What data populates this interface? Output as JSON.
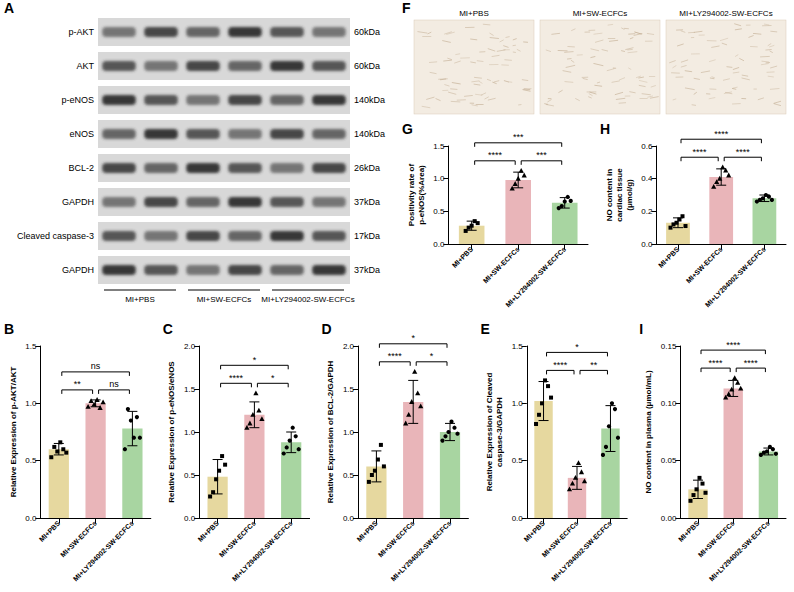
{
  "blot": {
    "panel": "A",
    "rows": [
      {
        "label": "p-AKT",
        "size": "60kDa"
      },
      {
        "label": "AKT",
        "size": "60kDa"
      },
      {
        "label": "p-eNOS",
        "size": "140kDa"
      },
      {
        "label": "eNOS",
        "size": "140kDa"
      },
      {
        "label": "BCL-2",
        "size": "26kDa"
      },
      {
        "label": "GAPDH",
        "size": "37kDa"
      },
      {
        "label": "Cleaved caspase-3",
        "size": "17kDa"
      },
      {
        "label": "GAPDH",
        "size": "37kDa"
      }
    ],
    "groups": [
      "MI+PBS",
      "MI+SW-ECFCs",
      "MI+LY294002-SW-ECFCs"
    ]
  },
  "micrographs": {
    "panel": "F",
    "images": [
      "MI+PBS",
      "MI+SW-ECFCs",
      "MI+LY294002-SW-ECFCs"
    ]
  },
  "chart_data": [
    {
      "panel": "B",
      "type": "bar",
      "ylabel": "Relative Expression of p-AKT/AKT",
      "categories": [
        "MI+PBS",
        "MI+SW-ECFCs",
        "MI+LY294002-SW-ECFCs"
      ],
      "values": [
        0.6,
        1.0,
        0.78
      ],
      "errors": [
        0.05,
        0.03,
        0.15
      ],
      "points": [
        {
          "marker": "square",
          "values": [
            0.53,
            0.62,
            0.58,
            0.66,
            0.6,
            0.57
          ]
        },
        {
          "marker": "triangle",
          "values": [
            0.97,
            1.02,
            0.99,
            1.03,
            0.96,
            1.01
          ]
        },
        {
          "marker": "circle",
          "values": [
            0.6,
            0.95,
            0.85,
            0.7,
            0.88,
            0.7
          ]
        }
      ],
      "colors": [
        "#e6d89f",
        "#e9b5b9",
        "#a8d5a1"
      ],
      "ylim": [
        0,
        1.5
      ],
      "yticks": [
        {
          "value": 0,
          "label": "0.0"
        },
        0.5,
        {
          "value": 1,
          "label": "1.0"
        },
        1.5
      ],
      "grid": false,
      "comparisons": [
        {
          "groups": [
            "MI+PBS",
            "MI+SW-ECFCs"
          ],
          "label": "**"
        },
        {
          "groups": [
            "MI+SW-ECFCs",
            "MI+LY294002-SW-ECFCs"
          ],
          "label": "ns"
        },
        {
          "groups": [
            "MI+PBS",
            "MI+LY294002-SW-ECFCs"
          ],
          "label": "ns"
        }
      ]
    },
    {
      "panel": "C",
      "type": "bar",
      "ylabel": "Relative Expression of p-eNOS/eNOS",
      "categories": [
        "MI+PBS",
        "MI+SW-ECFCs",
        "MI+LY294002-SW-ECFCs"
      ],
      "values": [
        0.48,
        1.2,
        0.88
      ],
      "errors": [
        0.2,
        0.15,
        0.12
      ],
      "points": [
        {
          "marker": "square",
          "values": [
            0.25,
            0.3,
            0.45,
            0.55,
            0.72,
            0.62
          ]
        },
        {
          "marker": "triangle",
          "values": [
            1.05,
            1.1,
            1.2,
            1.45,
            1.25,
            1.15
          ]
        },
        {
          "marker": "circle",
          "values": [
            0.75,
            0.82,
            0.9,
            1.05,
            0.95,
            0.8
          ]
        }
      ],
      "colors": [
        "#e6d89f",
        "#e9b5b9",
        "#a8d5a1"
      ],
      "ylim": [
        0,
        2
      ],
      "yticks": [
        {
          "value": 0,
          "label": "0.0"
        },
        0.5,
        {
          "value": 1,
          "label": "1.0"
        },
        1.5,
        {
          "value": 2,
          "label": "2.0"
        }
      ],
      "grid": false,
      "comparisons": [
        {
          "groups": [
            "MI+PBS",
            "MI+SW-ECFCs"
          ],
          "label": "****"
        },
        {
          "groups": [
            "MI+SW-ECFCs",
            "MI+LY294002-SW-ECFCs"
          ],
          "label": "*"
        },
        {
          "groups": [
            "MI+PBS",
            "MI+LY294002-SW-ECFCs"
          ],
          "label": "*"
        }
      ]
    },
    {
      "panel": "D",
      "type": "bar",
      "ylabel": "Relative Expression of BCL-2/GAPDH",
      "categories": [
        "MI+PBS",
        "MI+SW-ECFCs",
        "MI+LY294002-SW-ECFCs"
      ],
      "values": [
        0.6,
        1.35,
        1.0
      ],
      "errors": [
        0.18,
        0.25,
        0.1
      ],
      "points": [
        {
          "marker": "square",
          "values": [
            0.42,
            0.5,
            0.55,
            0.68,
            0.85,
            0.6
          ]
        },
        {
          "marker": "triangle",
          "values": [
            1.1,
            1.2,
            1.35,
            1.7,
            1.45,
            1.3
          ]
        },
        {
          "marker": "circle",
          "values": [
            0.9,
            0.95,
            1.0,
            1.12,
            1.05,
            0.98
          ]
        }
      ],
      "colors": [
        "#e6d89f",
        "#e9b5b9",
        "#a8d5a1"
      ],
      "ylim": [
        0,
        2
      ],
      "yticks": [
        {
          "value": 0,
          "label": "0.0"
        },
        0.5,
        {
          "value": 1,
          "label": "1.0"
        },
        1.5,
        {
          "value": 2,
          "label": "2.0"
        }
      ],
      "grid": false,
      "comparisons": [
        {
          "groups": [
            "MI+PBS",
            "MI+SW-ECFCs"
          ],
          "label": "****"
        },
        {
          "groups": [
            "MI+SW-ECFCs",
            "MI+LY294002-SW-ECFCs"
          ],
          "label": "*"
        },
        {
          "groups": [
            "MI+PBS",
            "MI+LY294002-SW-ECFCs"
          ],
          "label": "*"
        }
      ]
    },
    {
      "panel": "E",
      "type": "bar",
      "ylabel": "Relative Expression of Cleaved caspase-3/GAPDH",
      "categories": [
        "MI+PBS",
        "MI+SW-ECFCs",
        "MI+LY294002-SW-ECFCs"
      ],
      "values": [
        1.02,
        0.35,
        0.78
      ],
      "errors": [
        0.17,
        0.1,
        0.2
      ],
      "points": [
        {
          "marker": "square",
          "values": [
            0.82,
            0.9,
            1.0,
            1.2,
            1.15,
            1.05
          ]
        },
        {
          "marker": "triangle",
          "values": [
            0.25,
            0.3,
            0.35,
            0.48,
            0.4,
            0.32
          ]
        },
        {
          "marker": "circle",
          "values": [
            0.55,
            0.62,
            0.8,
            1.0,
            0.95,
            0.7
          ]
        }
      ],
      "colors": [
        "#e6d89f",
        "#e9b5b9",
        "#a8d5a1"
      ],
      "ylim": [
        0,
        1.5
      ],
      "yticks": [
        {
          "value": 0,
          "label": "0.0"
        },
        0.5,
        {
          "value": 1,
          "label": "1.0"
        },
        1.5
      ],
      "grid": false,
      "comparisons": [
        {
          "groups": [
            "MI+PBS",
            "MI+SW-ECFCs"
          ],
          "label": "****"
        },
        {
          "groups": [
            "MI+SW-ECFCs",
            "MI+LY294002-SW-ECFCs"
          ],
          "label": "**"
        },
        {
          "groups": [
            "MI+PBS",
            "MI+LY294002-SW-ECFCs"
          ],
          "label": "*"
        }
      ]
    },
    {
      "panel": "G",
      "type": "bar",
      "ylabel": "Positivity rate of p-eNOS(%Area)",
      "categories": [
        "MI+PBS",
        "MI+SW-ECFCs",
        "MI+LY294002-SW-ECFCs"
      ],
      "values": [
        0.28,
        0.98,
        0.63
      ],
      "errors": [
        0.07,
        0.12,
        0.08
      ],
      "points": [
        {
          "marker": "square",
          "values": [
            0.2,
            0.25,
            0.28,
            0.35,
            0.32
          ]
        },
        {
          "marker": "triangle",
          "values": [
            0.85,
            0.92,
            1.0,
            1.12,
            1.05
          ]
        },
        {
          "marker": "circle",
          "values": [
            0.55,
            0.58,
            0.65,
            0.72,
            0.66
          ]
        }
      ],
      "colors": [
        "#e6d89f",
        "#e9b5b9",
        "#a8d5a1"
      ],
      "ylim": [
        0,
        1.5
      ],
      "yticks": [
        {
          "value": 0,
          "label": "0.0"
        },
        0.5,
        {
          "value": 1,
          "label": "1.0"
        },
        1.5
      ],
      "grid": false,
      "comparisons": [
        {
          "groups": [
            "MI+PBS",
            "MI+SW-ECFCs"
          ],
          "label": "****"
        },
        {
          "groups": [
            "MI+SW-ECFCs",
            "MI+LY294002-SW-ECFCs"
          ],
          "label": "***"
        },
        {
          "groups": [
            "MI+PBS",
            "MI+LY294002-SW-ECFCs"
          ],
          "label": "***"
        }
      ]
    },
    {
      "panel": "H",
      "type": "bar",
      "ylabel": "NO content in cardiac tissue (μmol/g)",
      "categories": [
        "MI+PBS",
        "MI+SW-ECFCs",
        "MI+LY294002-SW-ECFCs"
      ],
      "values": [
        0.13,
        0.41,
        0.28
      ],
      "errors": [
        0.03,
        0.05,
        0.02
      ],
      "points": [
        {
          "marker": "square",
          "values": [
            0.1,
            0.12,
            0.13,
            0.15,
            0.17,
            0.11
          ]
        },
        {
          "marker": "triangle",
          "values": [
            0.35,
            0.38,
            0.4,
            0.47,
            0.45,
            0.42
          ]
        },
        {
          "marker": "circle",
          "values": [
            0.26,
            0.27,
            0.28,
            0.3,
            0.29,
            0.27
          ]
        }
      ],
      "colors": [
        "#e6d89f",
        "#e9b5b9",
        "#a8d5a1"
      ],
      "ylim": [
        0,
        0.6
      ],
      "yticks": [
        {
          "value": 0,
          "label": "0.0"
        },
        0.2,
        0.4,
        0.6
      ],
      "grid": false,
      "comparisons": [
        {
          "groups": [
            "MI+PBS",
            "MI+SW-ECFCs"
          ],
          "label": "****"
        },
        {
          "groups": [
            "MI+SW-ECFCs",
            "MI+LY294002-SW-ECFCs"
          ],
          "label": "****"
        },
        {
          "groups": [
            "MI+PBS",
            "MI+LY294002-SW-ECFCs"
          ],
          "label": "****"
        }
      ]
    },
    {
      "panel": "I",
      "type": "bar",
      "ylabel": "NO content in plasma (μmol/mL)",
      "categories": [
        "MI+PBS",
        "MI+SW-ECFCs",
        "MI+LY294002-SW-ECFCs"
      ],
      "values": [
        0.025,
        0.113,
        0.058
      ],
      "errors": [
        0.008,
        0.007,
        0.003
      ],
      "points": [
        {
          "marker": "square",
          "values": [
            0.015,
            0.02,
            0.025,
            0.035,
            0.03,
            0.022
          ]
        },
        {
          "marker": "triangle",
          "values": [
            0.105,
            0.108,
            0.112,
            0.122,
            0.118,
            0.113
          ]
        },
        {
          "marker": "circle",
          "values": [
            0.055,
            0.057,
            0.058,
            0.062,
            0.06,
            0.056
          ]
        }
      ],
      "colors": [
        "#e6d89f",
        "#e9b5b9",
        "#a8d5a1"
      ],
      "ylim": [
        0,
        0.15
      ],
      "yticks": [
        {
          "value": 0,
          "label": "0.00"
        },
        0.05,
        {
          "value": 0.1,
          "label": "0.10"
        },
        0.15
      ],
      "grid": false,
      "comparisons": [
        {
          "groups": [
            "MI+PBS",
            "MI+SW-ECFCs"
          ],
          "label": "****"
        },
        {
          "groups": [
            "MI+SW-ECFCs",
            "MI+LY294002-SW-ECFCs"
          ],
          "label": "****"
        },
        {
          "groups": [
            "MI+PBS",
            "MI+LY294002-SW-ECFCs"
          ],
          "label": "****"
        }
      ]
    }
  ]
}
